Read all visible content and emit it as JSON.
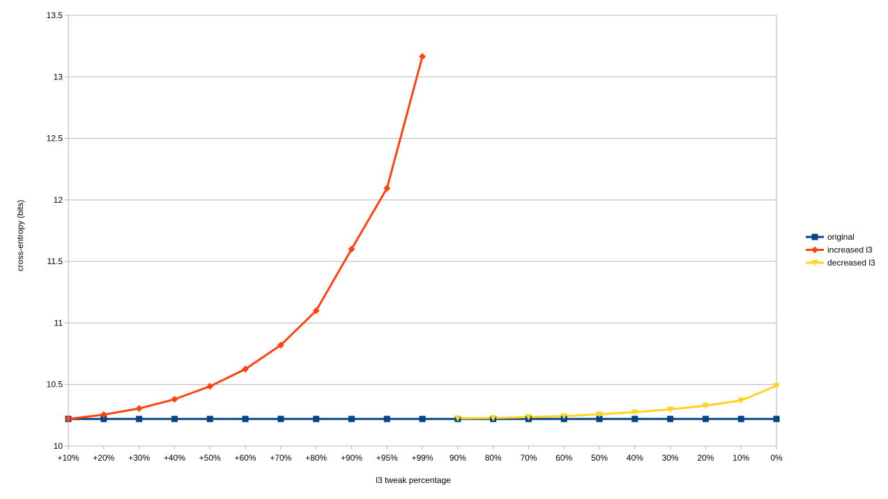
{
  "chart_data": {
    "type": "line",
    "title": "",
    "xlabel": "l3 tweak percentage",
    "ylabel": "cross-entropy (bits)",
    "categories": [
      "+10%",
      "+20%",
      "+30%",
      "+40%",
      "+50%",
      "+60%",
      "+70%",
      "+80%",
      "+90%",
      "+95%",
      "+99%",
      "90%",
      "80%",
      "70%",
      "60%",
      "50%",
      "40%",
      "30%",
      "20%",
      "10%",
      "0%"
    ],
    "ylim": [
      10,
      13.5
    ],
    "yticks": [
      "10",
      "10.5",
      "11",
      "11.5",
      "12",
      "12.5",
      "13",
      "13.5"
    ],
    "grid": true,
    "legend_position": "right",
    "series": [
      {
        "name": "original",
        "color": "#004586",
        "marker": "square",
        "values": [
          10.22,
          10.22,
          10.22,
          10.22,
          10.22,
          10.22,
          10.22,
          10.22,
          10.22,
          10.22,
          10.22,
          10.22,
          10.22,
          10.22,
          10.22,
          10.22,
          10.22,
          10.22,
          10.22,
          10.22,
          10.22
        ]
      },
      {
        "name": "increased l3",
        "color": "#ff420e",
        "marker": "diamond",
        "values": [
          10.22,
          10.255,
          10.305,
          10.38,
          10.485,
          10.625,
          10.82,
          11.1,
          11.6,
          12.095,
          13.165,
          null,
          null,
          null,
          null,
          null,
          null,
          null,
          null,
          null,
          null
        ]
      },
      {
        "name": "decreased l3",
        "color": "#ffd320",
        "marker": "triangle-down",
        "values": [
          null,
          null,
          null,
          null,
          null,
          null,
          null,
          null,
          null,
          null,
          null,
          10.225,
          10.228,
          10.235,
          10.243,
          10.258,
          10.275,
          10.298,
          10.328,
          10.37,
          10.49
        ]
      }
    ]
  }
}
